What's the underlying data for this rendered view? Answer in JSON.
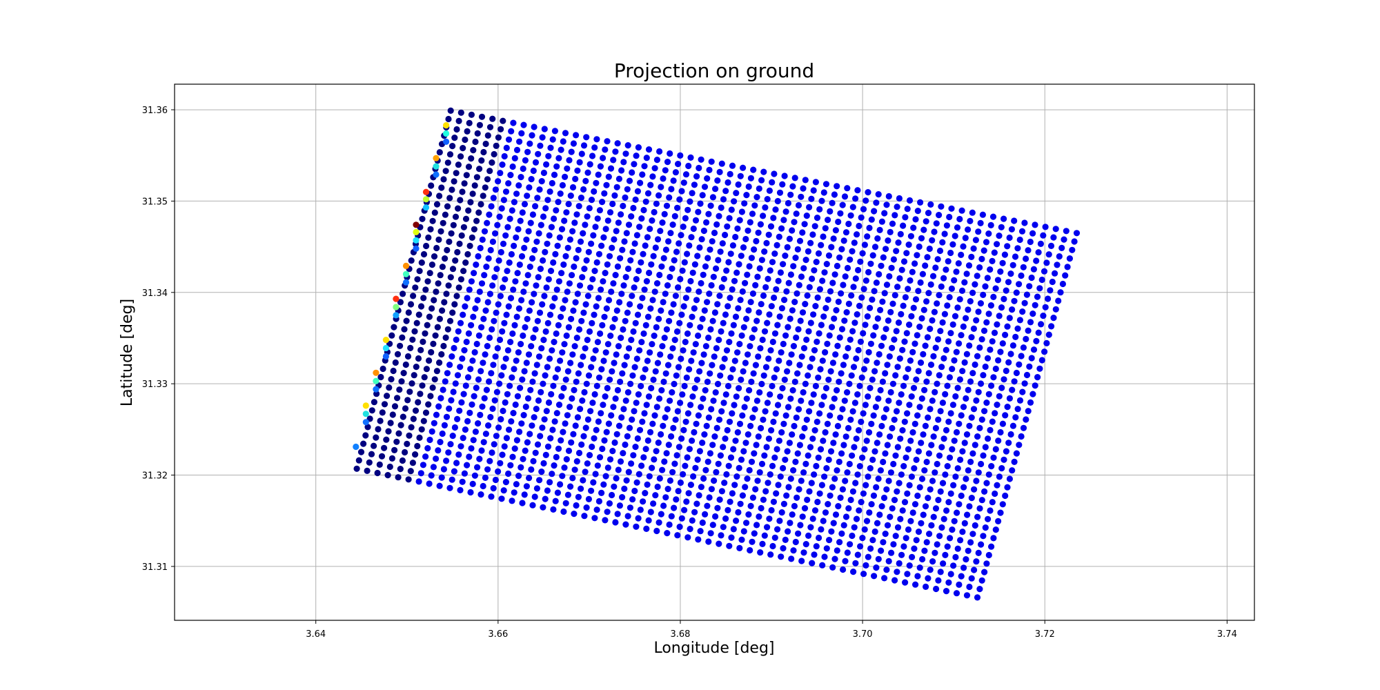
{
  "chart_data": {
    "type": "scatter",
    "title": "Projection on ground",
    "xlabel": "Longitude [deg]",
    "ylabel": "Latitude [deg]",
    "xlim": [
      3.6245,
      3.743
    ],
    "ylim": [
      31.3041,
      31.3628
    ],
    "xticks": [
      3.64,
      3.66,
      3.68,
      3.7,
      3.72,
      3.74
    ],
    "xtick_labels": [
      "3.64",
      "3.66",
      "3.68",
      "3.70",
      "3.72",
      "3.74"
    ],
    "yticks": [
      31.31,
      31.32,
      31.33,
      31.34,
      31.35,
      31.36
    ],
    "ytick_labels": [
      "31.31",
      "31.32",
      "31.33",
      "31.34",
      "31.35",
      "31.36"
    ],
    "grid": true,
    "colormap": "jet",
    "dominant_color": "#0000ee",
    "edge_dark_color": "#000080",
    "grid_pattern": {
      "description_of_sampling": "regular lat/lon grid of footprints forming a rotated quadrilateral",
      "corners": {
        "top_left": [
          3.6548,
          31.3599
        ],
        "top_right": [
          3.7235,
          31.3465
        ],
        "bottom_left": [
          3.6445,
          31.3207
        ],
        "bottom_right": [
          3.7126,
          31.3066
        ]
      },
      "columns": 61,
      "rows": 44
    },
    "edge_points": [
      {
        "x": 3.6543,
        "y": 31.3583,
        "color": "#ffe000"
      },
      {
        "x": 3.6543,
        "y": 31.3574,
        "color": "#20ffe0"
      },
      {
        "x": 3.6543,
        "y": 31.3565,
        "color": "#1060ff"
      },
      {
        "x": 3.6532,
        "y": 31.3547,
        "color": "#ffa000"
      },
      {
        "x": 3.6532,
        "y": 31.3538,
        "color": "#20e0e0"
      },
      {
        "x": 3.6532,
        "y": 31.3529,
        "color": "#1070ff"
      },
      {
        "x": 3.6521,
        "y": 31.351,
        "color": "#ff3010"
      },
      {
        "x": 3.6521,
        "y": 31.3502,
        "color": "#c0ff30"
      },
      {
        "x": 3.6521,
        "y": 31.3493,
        "color": "#10c0ff"
      },
      {
        "x": 3.651,
        "y": 31.3474,
        "color": "#800000"
      },
      {
        "x": 3.651,
        "y": 31.3466,
        "color": "#e0ff10"
      },
      {
        "x": 3.651,
        "y": 31.3457,
        "color": "#20e0ff"
      },
      {
        "x": 3.651,
        "y": 31.3448,
        "color": "#1060ff"
      },
      {
        "x": 3.6499,
        "y": 31.3429,
        "color": "#ff9000"
      },
      {
        "x": 3.6499,
        "y": 31.342,
        "color": "#40ffc0"
      },
      {
        "x": 3.6499,
        "y": 31.3411,
        "color": "#1070ff"
      },
      {
        "x": 3.6488,
        "y": 31.3393,
        "color": "#ff3010"
      },
      {
        "x": 3.6488,
        "y": 31.3384,
        "color": "#80ff80"
      },
      {
        "x": 3.6488,
        "y": 31.3375,
        "color": "#10a0ff"
      },
      {
        "x": 3.6477,
        "y": 31.3348,
        "color": "#ffe000"
      },
      {
        "x": 3.6477,
        "y": 31.3339,
        "color": "#20e0ff"
      },
      {
        "x": 3.6477,
        "y": 31.333,
        "color": "#1060ff"
      },
      {
        "x": 3.6466,
        "y": 31.3312,
        "color": "#ff9000"
      },
      {
        "x": 3.6466,
        "y": 31.3303,
        "color": "#40ffc0"
      },
      {
        "x": 3.6466,
        "y": 31.3294,
        "color": "#1070ff"
      },
      {
        "x": 3.6455,
        "y": 31.3276,
        "color": "#ffe000"
      },
      {
        "x": 3.6455,
        "y": 31.3267,
        "color": "#20e0e0"
      },
      {
        "x": 3.6455,
        "y": 31.3258,
        "color": "#1070ff"
      },
      {
        "x": 3.6444,
        "y": 31.3231,
        "color": "#1080ff"
      }
    ]
  }
}
